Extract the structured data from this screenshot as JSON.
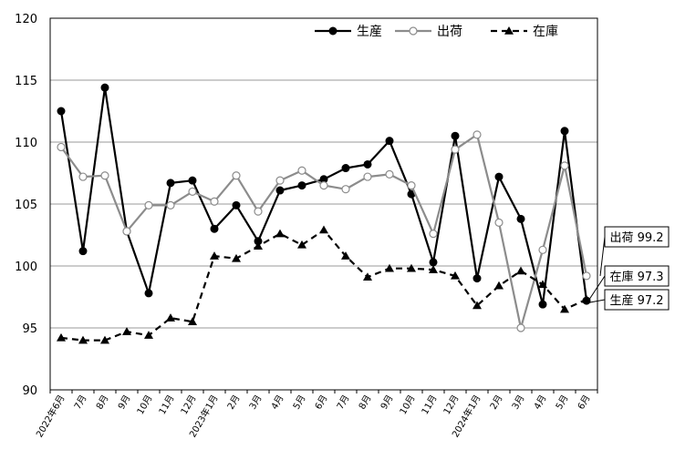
{
  "chart_data": {
    "type": "line",
    "categories": [
      "2022年6月",
      "7月",
      "8月",
      "9月",
      "10月",
      "11月",
      "12月",
      "2023年1月",
      "2月",
      "3月",
      "4月",
      "5月",
      "6月",
      "7月",
      "8月",
      "9月",
      "10月",
      "11月",
      "12月",
      "2024年1月",
      "2月",
      "3月",
      "4月",
      "5月",
      "6月"
    ],
    "ylim": [
      90,
      120
    ],
    "yticks": [
      90,
      95,
      100,
      105,
      110,
      115,
      120
    ],
    "grid": true,
    "legend_position": "top-right",
    "series": [
      {
        "name": "生産",
        "color": "#000000",
        "style": "solid",
        "marker": "filled-circle",
        "values": [
          112.5,
          101.2,
          114.4,
          102.8,
          97.8,
          106.7,
          106.9,
          103.0,
          104.9,
          102.0,
          106.1,
          106.5,
          107.0,
          107.9,
          108.2,
          110.1,
          105.8,
          100.3,
          110.5,
          99.0,
          107.2,
          103.8,
          96.9,
          110.9,
          97.2
        ]
      },
      {
        "name": "出荷",
        "color": "#8c8c8c",
        "style": "solid",
        "marker": "open-circle",
        "values": [
          109.6,
          107.2,
          107.3,
          102.8,
          104.9,
          104.9,
          106.0,
          105.2,
          107.3,
          104.4,
          106.9,
          107.7,
          106.5,
          106.2,
          107.2,
          107.4,
          106.5,
          102.6,
          109.4,
          110.6,
          103.5,
          95.0,
          101.3,
          108.1,
          99.2
        ]
      },
      {
        "name": "在庫",
        "color": "#000000",
        "style": "dashed",
        "marker": "filled-triangle",
        "values": [
          94.2,
          94.0,
          94.0,
          94.7,
          94.4,
          95.8,
          95.5,
          100.8,
          100.6,
          101.6,
          102.6,
          101.7,
          102.9,
          100.8,
          99.1,
          99.8,
          99.8,
          99.7,
          99.2,
          96.8,
          98.4,
          99.6,
          98.5,
          96.5,
          97.3
        ]
      }
    ],
    "annotations": [
      {
        "series": "出荷",
        "text": "出荷 99.2"
      },
      {
        "series": "在庫",
        "text": "在庫 97.3"
      },
      {
        "series": "生産",
        "text": "生産 97.2"
      }
    ]
  }
}
